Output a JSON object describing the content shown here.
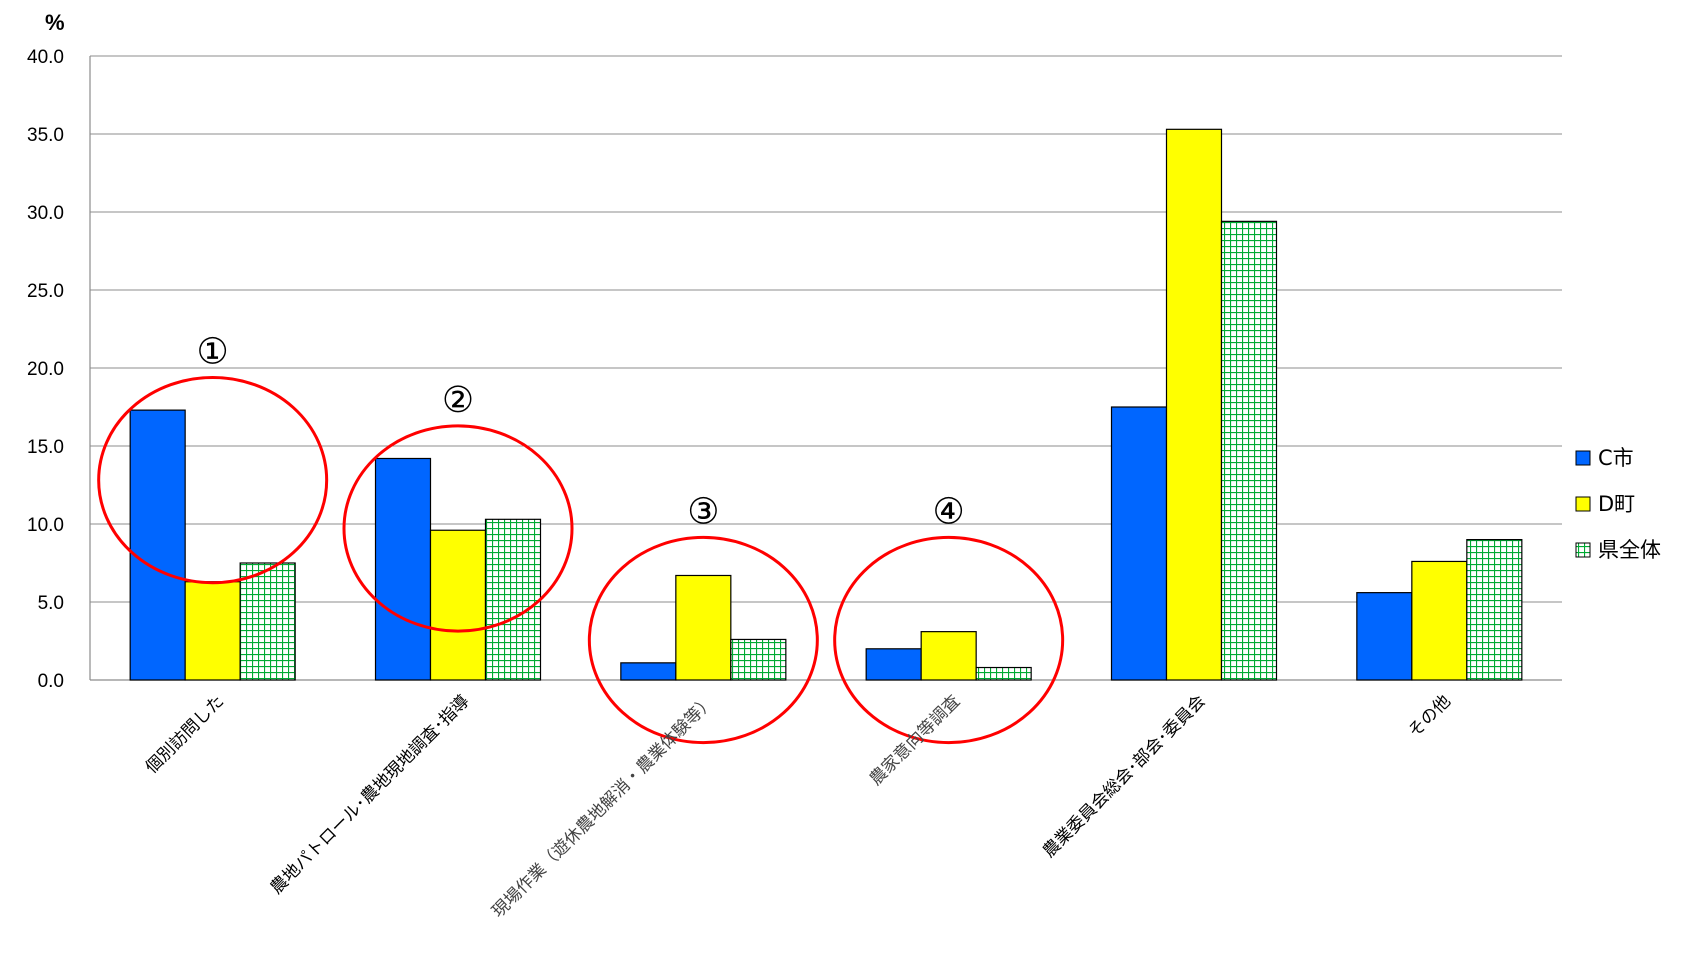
{
  "chart_data": {
    "type": "bar",
    "unit_label": "%",
    "categories": [
      "個別訪問した",
      "農地パトロール･農地現地調査･指導",
      "現場作業（遊休農地解消・農業体験等）",
      "農家意向等調査",
      "農業委員会総会･部会･委員会",
      "その他"
    ],
    "series": [
      {
        "name": "C市",
        "color": "#0066ff",
        "pattern": "solid",
        "values": [
          17.3,
          14.2,
          1.1,
          2.0,
          17.5,
          5.6
        ]
      },
      {
        "name": "D町",
        "color": "#ffff00",
        "pattern": "solid",
        "values": [
          6.3,
          9.6,
          6.7,
          3.1,
          35.3,
          7.6
        ]
      },
      {
        "name": "県全体",
        "color": "#00cc44",
        "pattern": "grid",
        "values": [
          7.5,
          10.3,
          2.6,
          0.8,
          29.4,
          9.0
        ]
      }
    ],
    "yticks": [
      "0.0",
      "5.0",
      "10.0",
      "15.0",
      "20.0",
      "25.0",
      "30.0",
      "35.0",
      "40.0"
    ],
    "ylim": [
      0,
      40
    ],
    "grid": true,
    "legend_position": "right",
    "annotations": [
      {
        "label": "①",
        "category_index": 0
      },
      {
        "label": "②",
        "category_index": 1
      },
      {
        "label": "③",
        "category_index": 2
      },
      {
        "label": "④",
        "category_index": 3
      }
    ],
    "annotation_color": "#ff0000"
  }
}
